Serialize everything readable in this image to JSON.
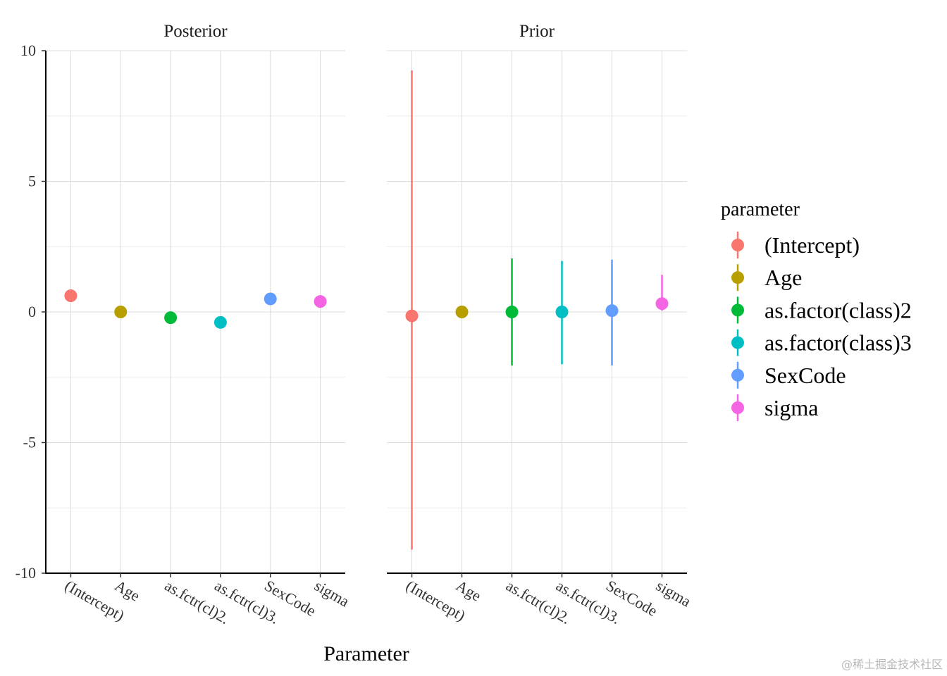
{
  "chart_data": {
    "type": "scatter",
    "xlabel": "Parameter",
    "ylabel": "",
    "ylim": [
      -10,
      10
    ],
    "y_ticks": [
      10,
      5,
      0,
      -5,
      -10
    ],
    "y_tick_labels": [
      "10",
      "5",
      "0",
      "-5",
      "-10"
    ],
    "grid": true,
    "categories": [
      "(Intercept)",
      "Age",
      "as.factor(class)2",
      "as.factor(class)3",
      "SexCode",
      "sigma"
    ],
    "x_tick_labels": [
      "(Intercept)",
      "Age",
      "as.fctr(cl)2.",
      "as.fctr(cl)3.",
      "SexCode",
      "sigma"
    ],
    "facets": [
      {
        "title": "Posterior",
        "points": [
          {
            "parameter": "(Intercept)",
            "estimate": 0.62,
            "lower": 0.62,
            "upper": 0.62
          },
          {
            "parameter": "Age",
            "estimate": 0.0,
            "lower": 0.0,
            "upper": 0.0
          },
          {
            "parameter": "as.factor(class)2",
            "estimate": -0.22,
            "lower": -0.22,
            "upper": -0.22
          },
          {
            "parameter": "as.factor(class)3",
            "estimate": -0.4,
            "lower": -0.4,
            "upper": -0.4
          },
          {
            "parameter": "SexCode",
            "estimate": 0.5,
            "lower": 0.5,
            "upper": 0.5
          },
          {
            "parameter": "sigma",
            "estimate": 0.4,
            "lower": 0.4,
            "upper": 0.4
          }
        ]
      },
      {
        "title": "Prior",
        "points": [
          {
            "parameter": "(Intercept)",
            "estimate": -0.15,
            "lower": -9.1,
            "upper": 9.25
          },
          {
            "parameter": "Age",
            "estimate": 0.0,
            "lower": 0.0,
            "upper": 0.0
          },
          {
            "parameter": "as.factor(class)2",
            "estimate": 0.0,
            "lower": -2.05,
            "upper": 2.05
          },
          {
            "parameter": "as.factor(class)3",
            "estimate": 0.0,
            "lower": -2.0,
            "upper": 1.95
          },
          {
            "parameter": "SexCode",
            "estimate": 0.05,
            "lower": -2.05,
            "upper": 2.0
          },
          {
            "parameter": "sigma",
            "estimate": 0.32,
            "lower": 0.05,
            "upper": 1.42
          }
        ]
      }
    ],
    "legend": {
      "title": "parameter",
      "position": "right",
      "entries": [
        {
          "label": "(Intercept)",
          "color": "#F8766D"
        },
        {
          "label": "Age",
          "color": "#B79F00"
        },
        {
          "label": "as.factor(class)2",
          "color": "#00BA38"
        },
        {
          "label": "as.factor(class)3",
          "color": "#00BFC4"
        },
        {
          "label": "SexCode",
          "color": "#619CFF"
        },
        {
          "label": "sigma",
          "color": "#F564E3"
        }
      ]
    }
  },
  "watermark": "@稀土掘金技术社区"
}
